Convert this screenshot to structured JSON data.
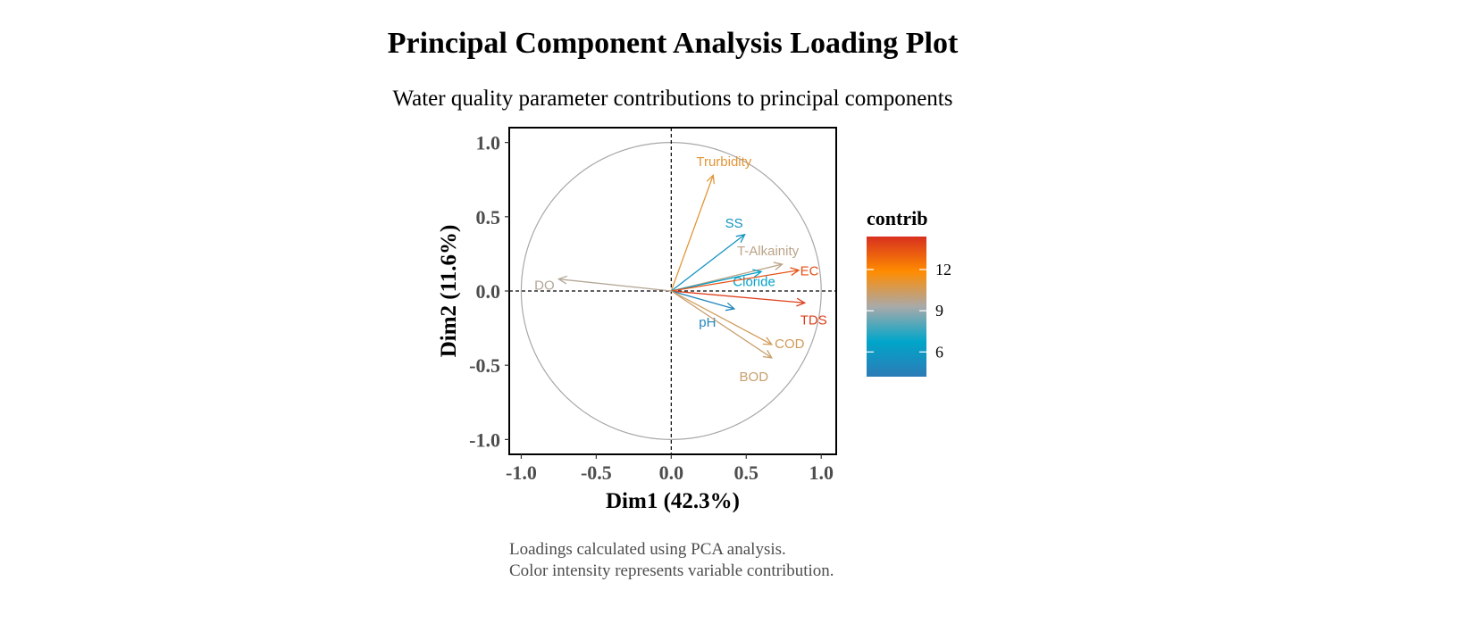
{
  "chart_data": {
    "type": "scatter",
    "subtype": "pca-variable-loading-plot",
    "title": "Principal Component Analysis Loading Plot",
    "subtitle": "Water quality parameter contributions to principal components",
    "xlabel": "Dim1 (42.3%)",
    "ylabel": "Dim2 (11.6%)",
    "xlim": [
      -1.08,
      1.1
    ],
    "ylim": [
      -1.1,
      1.1
    ],
    "x_ticks": [
      -1.0,
      -0.5,
      0.0,
      0.5,
      1.0
    ],
    "y_ticks": [
      -1.0,
      -0.5,
      0.0,
      0.5,
      1.0
    ],
    "x_tick_labels": [
      "-1.0",
      "-0.5",
      "0.0",
      "0.5",
      "1.0"
    ],
    "y_tick_labels": [
      "-1.0",
      "-0.5",
      "0.0",
      "0.5",
      "1.0"
    ],
    "correlation_circle_radius": 1.0,
    "grid": false,
    "reference_lines": {
      "x": 0,
      "y": 0,
      "style": "dashed"
    },
    "variables": [
      {
        "name": "Trurbidity",
        "x": 0.28,
        "y": 0.78,
        "contrib": 11.0
      },
      {
        "name": "SS",
        "x": 0.49,
        "y": 0.38,
        "contrib": 5.6
      },
      {
        "name": "T-Alkainity",
        "x": 0.74,
        "y": 0.18,
        "contrib": 9.8
      },
      {
        "name": "Cloride",
        "x": 0.6,
        "y": 0.13,
        "contrib": 6.4
      },
      {
        "name": "EC",
        "x": 0.85,
        "y": 0.14,
        "contrib": 13.5
      },
      {
        "name": "TDS",
        "x": 0.89,
        "y": -0.08,
        "contrib": 14.0
      },
      {
        "name": "pH",
        "x": 0.42,
        "y": -0.12,
        "contrib": 4.8
      },
      {
        "name": "COD",
        "x": 0.67,
        "y": -0.36,
        "contrib": 10.5
      },
      {
        "name": "BOD",
        "x": 0.67,
        "y": -0.45,
        "contrib": 10.2
      },
      {
        "name": "DO",
        "x": -0.75,
        "y": 0.08,
        "contrib": 9.6
      }
    ],
    "legend": {
      "title": "contrib",
      "placement": "right",
      "range": [
        4.2,
        14.4
      ],
      "ticks": [
        6,
        9,
        12
      ],
      "tick_labels": [
        "6",
        "9",
        "12"
      ],
      "gradient_colors": [
        "#2c7bb6",
        "#00a6ca",
        "#a9a9a9",
        "#ff8c00",
        "#d7301f"
      ]
    }
  },
  "caption": {
    "line1": "Loadings calculated using PCA analysis.",
    "line2": "Color intensity represents variable contribution."
  }
}
